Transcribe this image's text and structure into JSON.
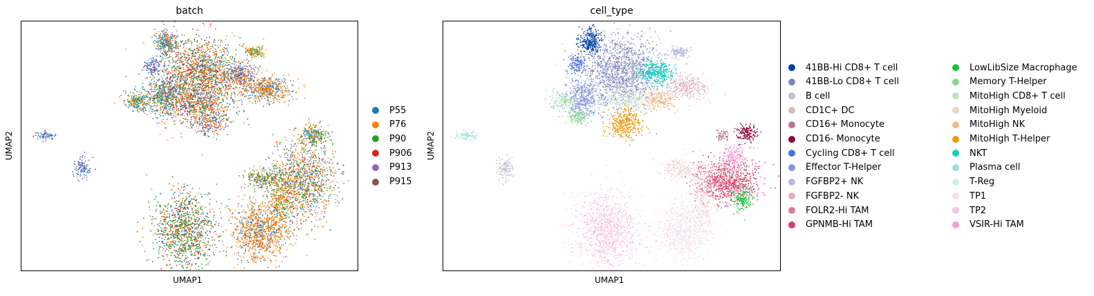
{
  "chart_data": [
    {
      "type": "scatter",
      "title": "batch",
      "xlabel": "UMAP1",
      "ylabel": "UMAP2",
      "grid": false,
      "legend_placement": "right",
      "categories": [
        {
          "name": "P55",
          "color": "#1f77b4"
        },
        {
          "name": "P76",
          "color": "#ff7f0e"
        },
        {
          "name": "P90",
          "color": "#2ca02c"
        },
        {
          "name": "P906",
          "color": "#d62728"
        },
        {
          "name": "P913",
          "color": "#9467bd"
        },
        {
          "name": "P915",
          "color": "#8c564b"
        }
      ]
    },
    {
      "type": "scatter",
      "title": "cell_type",
      "xlabel": "UMAP1",
      "ylabel": "UMAP2",
      "grid": false,
      "legend_placement": "right",
      "categories": [
        {
          "name": "41BB-Hi CD8+ T cell",
          "color": "#023fa5"
        },
        {
          "name": "41BB-Lo CD8+ T cell",
          "color": "#7d87b9"
        },
        {
          "name": "B cell",
          "color": "#bec1d4"
        },
        {
          "name": "CD1C+ DC",
          "color": "#d6bcc0"
        },
        {
          "name": "CD16+ Monocyte",
          "color": "#bb7784"
        },
        {
          "name": "CD16- Monocyte",
          "color": "#8e063b"
        },
        {
          "name": "Cycling CD8+ T cell",
          "color": "#4a6fe3"
        },
        {
          "name": "Effector T-Helper",
          "color": "#8595e1"
        },
        {
          "name": "FGFBP2+ NK",
          "color": "#b5bbe3"
        },
        {
          "name": "FGFBP2- NK",
          "color": "#e6afb9"
        },
        {
          "name": "FOLR2-Hi TAM",
          "color": "#e07b91"
        },
        {
          "name": "GPNMB-Hi TAM",
          "color": "#d33f6a"
        },
        {
          "name": "LowLibSize Macrophage",
          "color": "#11c638"
        },
        {
          "name": "Memory T-Helper",
          "color": "#8dd593"
        },
        {
          "name": "MitoHigh CD8+ T cell",
          "color": "#c6dec7"
        },
        {
          "name": "MitoHigh Myeloid",
          "color": "#ead3c6"
        },
        {
          "name": "MitoHigh NK",
          "color": "#f0b98d"
        },
        {
          "name": "MitoHigh T-Helper",
          "color": "#ef9708"
        },
        {
          "name": "NKT",
          "color": "#0fcfc0"
        },
        {
          "name": "Plasma cell",
          "color": "#9cded6"
        },
        {
          "name": "T-Reg",
          "color": "#d5eae7"
        },
        {
          "name": "TP1",
          "color": "#f3e1eb"
        },
        {
          "name": "TP2",
          "color": "#f6c4e1"
        },
        {
          "name": "VSIR-Hi TAM",
          "color": "#f79cd4"
        }
      ]
    }
  ]
}
